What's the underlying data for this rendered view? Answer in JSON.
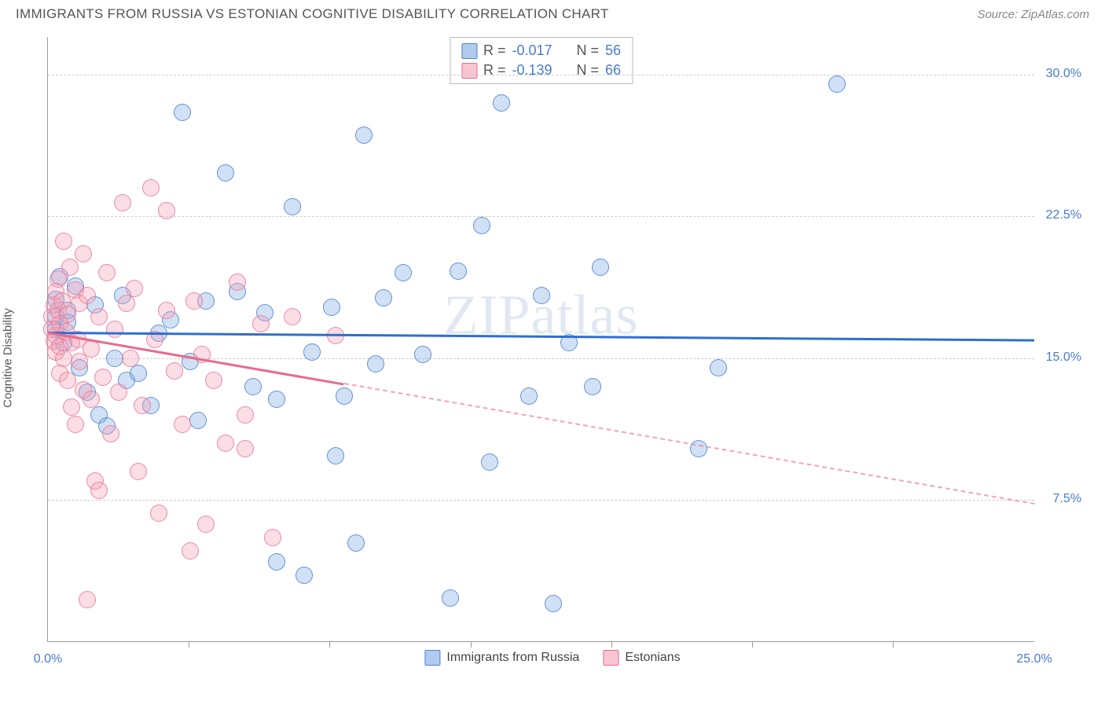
{
  "title": "IMMIGRANTS FROM RUSSIA VS ESTONIAN COGNITIVE DISABILITY CORRELATION CHART",
  "source": "Source: ZipAtlas.com",
  "watermark": "ZIPatlas",
  "y_axis_label": "Cognitive Disability",
  "chart": {
    "type": "scatter-correlation",
    "background_color": "#ffffff",
    "grid_color": "#cccccc",
    "axis_color": "#999999",
    "xlim": [
      0,
      25
    ],
    "ylim": [
      0,
      32
    ],
    "x_ticks_labeled": [
      {
        "x": 0,
        "label": "0.0%"
      },
      {
        "x": 25,
        "label": "25.0%"
      }
    ],
    "x_ticks_minor": [
      3.57,
      7.14,
      10.71,
      14.28,
      17.85,
      21.42
    ],
    "y_ticks": [
      {
        "y": 7.5,
        "label": "7.5%"
      },
      {
        "y": 15.0,
        "label": "15.0%"
      },
      {
        "y": 22.5,
        "label": "22.5%"
      },
      {
        "y": 30.0,
        "label": "30.0%"
      }
    ],
    "point_radius": 11,
    "series": [
      {
        "name": "Immigrants from Russia",
        "color_fill": "rgba(122,169,226,0.35)",
        "color_border": "rgba(80,130,210,0.85)",
        "R": "-0.017",
        "N": "56",
        "trend": {
          "y_start": 16.4,
          "y_end": 16.0,
          "x_solid_end": 25,
          "color": "#2e6fd0"
        },
        "points": [
          [
            0.2,
            17.2
          ],
          [
            0.2,
            18.1
          ],
          [
            0.2,
            16.5
          ],
          [
            0.3,
            19.3
          ],
          [
            0.4,
            15.8
          ],
          [
            0.5,
            16.9
          ],
          [
            0.5,
            17.5
          ],
          [
            0.7,
            18.8
          ],
          [
            0.8,
            14.5
          ],
          [
            1.0,
            13.2
          ],
          [
            1.2,
            17.8
          ],
          [
            1.3,
            12.0
          ],
          [
            1.5,
            11.4
          ],
          [
            1.7,
            15.0
          ],
          [
            1.9,
            18.3
          ],
          [
            2.0,
            13.8
          ],
          [
            2.3,
            14.2
          ],
          [
            2.6,
            12.5
          ],
          [
            2.8,
            16.3
          ],
          [
            3.1,
            17.0
          ],
          [
            3.4,
            28.0
          ],
          [
            3.6,
            14.8
          ],
          [
            3.8,
            11.7
          ],
          [
            4.0,
            18.0
          ],
          [
            4.5,
            24.8
          ],
          [
            4.8,
            18.5
          ],
          [
            5.2,
            13.5
          ],
          [
            5.5,
            17.4
          ],
          [
            5.8,
            4.2
          ],
          [
            5.8,
            12.8
          ],
          [
            6.2,
            23.0
          ],
          [
            6.5,
            3.5
          ],
          [
            6.7,
            15.3
          ],
          [
            7.2,
            17.7
          ],
          [
            7.3,
            9.8
          ],
          [
            7.5,
            13.0
          ],
          [
            7.8,
            5.2
          ],
          [
            8.0,
            26.8
          ],
          [
            8.3,
            14.7
          ],
          [
            8.5,
            18.2
          ],
          [
            9.0,
            19.5
          ],
          [
            9.5,
            15.2
          ],
          [
            10.2,
            2.3
          ],
          [
            10.4,
            19.6
          ],
          [
            11.0,
            22.0
          ],
          [
            11.2,
            9.5
          ],
          [
            11.5,
            28.5
          ],
          [
            12.2,
            13.0
          ],
          [
            12.5,
            18.3
          ],
          [
            12.8,
            2.0
          ],
          [
            13.2,
            15.8
          ],
          [
            13.8,
            13.5
          ],
          [
            14.0,
            19.8
          ],
          [
            16.5,
            10.2
          ],
          [
            17.0,
            14.5
          ],
          [
            20.0,
            29.5
          ]
        ]
      },
      {
        "name": "Estonians",
        "color_fill": "rgba(244,160,180,0.35)",
        "color_border": "rgba(235,120,150,0.85)",
        "R": "-0.139",
        "N": "66",
        "trend": {
          "y_start": 16.4,
          "y_end": 7.3,
          "x_solid_end": 7.5,
          "color": "#e86a8f"
        },
        "points": [
          [
            0.1,
            17.2
          ],
          [
            0.1,
            16.5
          ],
          [
            0.15,
            15.9
          ],
          [
            0.15,
            17.8
          ],
          [
            0.2,
            18.5
          ],
          [
            0.2,
            16.2
          ],
          [
            0.2,
            15.3
          ],
          [
            0.25,
            17.5
          ],
          [
            0.25,
            19.2
          ],
          [
            0.3,
            15.6
          ],
          [
            0.3,
            16.8
          ],
          [
            0.3,
            14.2
          ],
          [
            0.35,
            18.0
          ],
          [
            0.4,
            15.0
          ],
          [
            0.4,
            21.2
          ],
          [
            0.45,
            16.4
          ],
          [
            0.5,
            13.8
          ],
          [
            0.5,
            17.3
          ],
          [
            0.55,
            19.8
          ],
          [
            0.6,
            12.4
          ],
          [
            0.6,
            15.8
          ],
          [
            0.7,
            18.6
          ],
          [
            0.7,
            11.5
          ],
          [
            0.75,
            16.0
          ],
          [
            0.8,
            14.8
          ],
          [
            0.8,
            17.9
          ],
          [
            0.9,
            20.5
          ],
          [
            0.9,
            13.3
          ],
          [
            1.0,
            2.2
          ],
          [
            1.0,
            18.3
          ],
          [
            1.1,
            15.5
          ],
          [
            1.1,
            12.8
          ],
          [
            1.2,
            8.5
          ],
          [
            1.3,
            17.2
          ],
          [
            1.3,
            8.0
          ],
          [
            1.4,
            14.0
          ],
          [
            1.5,
            19.5
          ],
          [
            1.6,
            11.0
          ],
          [
            1.7,
            16.5
          ],
          [
            1.8,
            13.2
          ],
          [
            1.9,
            23.2
          ],
          [
            2.0,
            17.9
          ],
          [
            2.1,
            15.0
          ],
          [
            2.2,
            18.7
          ],
          [
            2.3,
            9.0
          ],
          [
            2.4,
            12.5
          ],
          [
            2.6,
            24.0
          ],
          [
            2.7,
            16.0
          ],
          [
            2.8,
            6.8
          ],
          [
            3.0,
            17.5
          ],
          [
            3.0,
            22.8
          ],
          [
            3.2,
            14.3
          ],
          [
            3.4,
            11.5
          ],
          [
            3.6,
            4.8
          ],
          [
            3.7,
            18.0
          ],
          [
            3.9,
            15.2
          ],
          [
            4.0,
            6.2
          ],
          [
            4.2,
            13.8
          ],
          [
            4.5,
            10.5
          ],
          [
            4.8,
            19.0
          ],
          [
            5.0,
            12.0
          ],
          [
            5.0,
            10.2
          ],
          [
            5.4,
            16.8
          ],
          [
            5.7,
            5.5
          ],
          [
            6.2,
            17.2
          ],
          [
            7.3,
            16.2
          ]
        ]
      }
    ]
  },
  "legend_top_labels": {
    "R": "R =",
    "N": "N ="
  },
  "legend_bottom": [
    {
      "swatch": "blue",
      "label": "Immigrants from Russia"
    },
    {
      "swatch": "pink",
      "label": "Estonians"
    }
  ]
}
